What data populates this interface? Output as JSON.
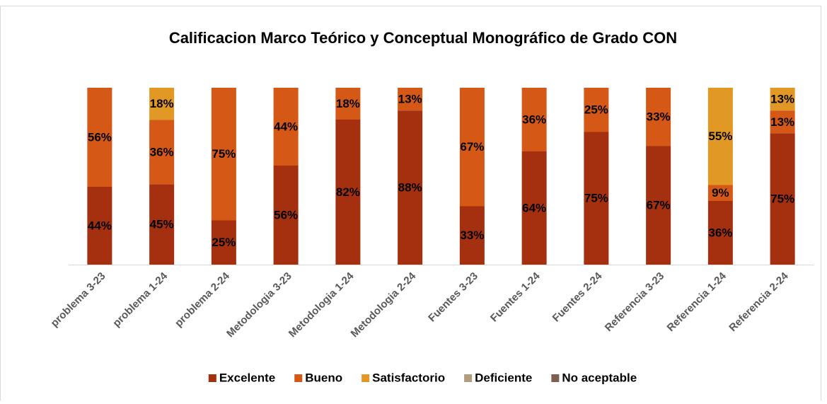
{
  "chart_data": {
    "type": "stacked_bar_100",
    "title": "Calificacion Marco Teórico y Conceptual Monográfico de Grado CON",
    "categories": [
      "problema 3-23",
      "problema 1-24",
      "problema 2-24",
      "Metodologia 3-23",
      "Metodologia 1-24",
      "Metodologia 2-24",
      "Fuentes 3-23",
      "Fuentes 1-24",
      "Fuentes 2-24",
      "Referencia 3-23",
      "Referencia 1-24",
      "Referencia 2-24"
    ],
    "series": [
      {
        "name": "Excelente",
        "color": "#a5300f",
        "values": [
          44,
          45,
          25,
          56,
          82,
          88,
          33,
          64,
          75,
          67,
          36,
          75
        ],
        "value_labels": [
          "44%",
          "45%",
          "25%",
          "56%",
          "82%",
          "88%",
          "33%",
          "64%",
          "75%",
          "67%",
          "36%",
          "75%"
        ]
      },
      {
        "name": "Bueno",
        "color": "#d55816",
        "values": [
          56,
          36,
          75,
          44,
          18,
          13,
          67,
          36,
          25,
          33,
          9,
          13
        ],
        "value_labels": [
          "56%",
          "36%",
          "75%",
          "44%",
          "18%",
          "13%",
          "67%",
          "36%",
          "25%",
          "33%",
          "9%",
          "13%"
        ]
      },
      {
        "name": "Satisfactorio",
        "color": "#e19825",
        "values": [
          null,
          18,
          null,
          null,
          null,
          null,
          null,
          null,
          null,
          null,
          55,
          13
        ],
        "value_labels": [
          null,
          "18%",
          null,
          null,
          null,
          null,
          null,
          null,
          null,
          null,
          "55%",
          "13%"
        ]
      },
      {
        "name": "Deficiente",
        "color": "#b19c7d",
        "values": [
          null,
          null,
          null,
          null,
          null,
          null,
          null,
          null,
          null,
          null,
          null,
          null
        ]
      },
      {
        "name": "No aceptable",
        "color": "#7f5f52",
        "values": [
          null,
          null,
          null,
          null,
          null,
          null,
          null,
          null,
          null,
          null,
          null,
          null
        ]
      }
    ]
  }
}
